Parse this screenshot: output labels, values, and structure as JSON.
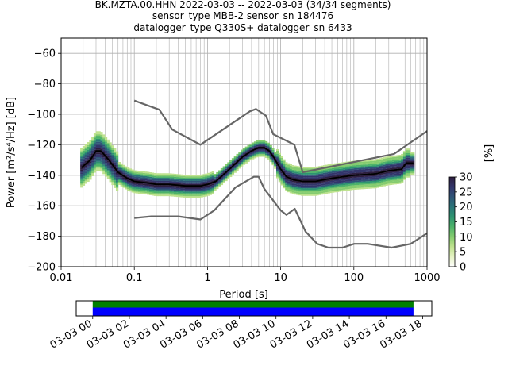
{
  "chart_data": {
    "type": "heatmap",
    "title_lines": [
      "BK.MZTA.00.HHN   2022-03-03 -- 2022-03-03  (34/34 segments)",
      "sensor_type MBB-2 sensor_sn 184476",
      "datalogger_type Q330S+ datalogger_sn 6433"
    ],
    "xlabel": "Period [s]",
    "ylabel": "Power [m²/s⁴/Hz] [dB]",
    "x_scale": "log",
    "xlim": [
      0.01,
      1000
    ],
    "ylim": [
      -200,
      -50
    ],
    "x_tick_labels": [
      "0.01",
      "0.1",
      "1",
      "10",
      "100",
      "1000"
    ],
    "y_tick_labels": [
      "−200",
      "−180",
      "−160",
      "−140",
      "−120",
      "−100",
      "−80",
      "−60"
    ],
    "grid": true,
    "mean_curve": [
      [
        0.019,
        -135
      ],
      [
        0.025,
        -130
      ],
      [
        0.03,
        -124
      ],
      [
        0.035,
        -124
      ],
      [
        0.045,
        -130
      ],
      [
        0.06,
        -138
      ],
      [
        0.08,
        -142
      ],
      [
        0.1,
        -144
      ],
      [
        0.15,
        -145
      ],
      [
        0.2,
        -146
      ],
      [
        0.3,
        -146
      ],
      [
        0.5,
        -147
      ],
      [
        0.8,
        -147
      ],
      [
        1.0,
        -146
      ],
      [
        1.3,
        -144
      ],
      [
        2.0,
        -136
      ],
      [
        3.0,
        -128
      ],
      [
        4.0,
        -124
      ],
      [
        5.0,
        -122
      ],
      [
        6.0,
        -122
      ],
      [
        7.0,
        -124
      ],
      [
        8.0,
        -128
      ],
      [
        10.0,
        -136
      ],
      [
        12.0,
        -141
      ],
      [
        15.0,
        -143
      ],
      [
        20.0,
        -144
      ],
      [
        30.0,
        -144
      ],
      [
        50.0,
        -142
      ],
      [
        100.0,
        -140
      ],
      [
        200.0,
        -139
      ],
      [
        300.0,
        -137
      ],
      [
        450.0,
        -136
      ],
      [
        520.0,
        -132
      ],
      [
        650.0,
        -132
      ]
    ],
    "new_high_noise_model": [
      [
        0.1,
        -91
      ],
      [
        0.22,
        -97
      ],
      [
        0.33,
        -110
      ],
      [
        0.8,
        -120
      ],
      [
        3.8,
        -98
      ],
      [
        4.6,
        -96.5
      ],
      [
        6.3,
        -101
      ],
      [
        7.9,
        -113
      ],
      [
        15.4,
        -120
      ],
      [
        20.0,
        -138
      ],
      [
        354.8,
        -126
      ],
      [
        1000.0,
        -111
      ]
    ],
    "new_low_noise_model": [
      [
        0.1,
        -168
      ],
      [
        0.17,
        -167
      ],
      [
        0.4,
        -167
      ],
      [
        0.8,
        -169
      ],
      [
        1.24,
        -163
      ],
      [
        2.4,
        -148
      ],
      [
        4.3,
        -141
      ],
      [
        5.0,
        -141
      ],
      [
        6.0,
        -149
      ],
      [
        10.0,
        -163
      ],
      [
        12.0,
        -166
      ],
      [
        15.6,
        -162
      ],
      [
        21.9,
        -177
      ],
      [
        31.6,
        -185
      ],
      [
        45.0,
        -187.5
      ],
      [
        70.0,
        -187.5
      ],
      [
        101.0,
        -185
      ],
      [
        154.0,
        -185
      ],
      [
        328.0,
        -187.5
      ],
      [
        600.0,
        -185
      ],
      [
        1000.0,
        -178
      ]
    ],
    "colorbar": {
      "label": "[%]",
      "range": [
        0,
        30
      ],
      "tick_labels": [
        "0",
        "5",
        "10",
        "15",
        "20",
        "25",
        "30"
      ],
      "colors": [
        "#ffffff",
        "#e5f2c4",
        "#bfe28f",
        "#85cc6f",
        "#4eb36a",
        "#2e9470",
        "#2a7478",
        "#2f5577",
        "#33356b",
        "#2d1e3e"
      ]
    },
    "timeline": {
      "tick_labels": [
        "03-03 00",
        "03-03 02",
        "03-03 04",
        "03-03 06",
        "03-03 08",
        "03-03 10",
        "03-03 12",
        "03-03 14",
        "03-03 16",
        "03-03 18"
      ],
      "data_hours": [
        0,
        17.5
      ],
      "xlim_hours": [
        -0.9,
        18.5
      ],
      "bar_colors": [
        "#008000",
        "#0000ff"
      ]
    }
  }
}
